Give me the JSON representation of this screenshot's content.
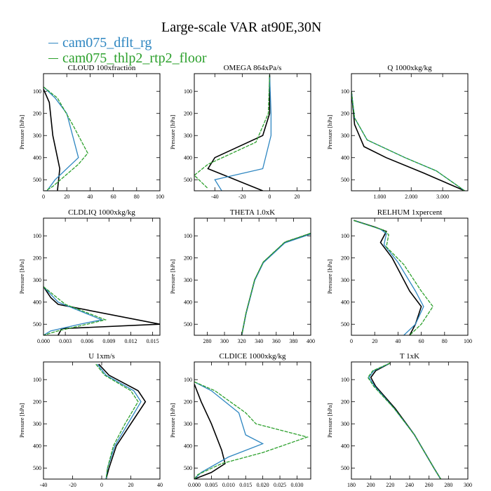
{
  "figure": {
    "title": "Large-scale VAR at90E,30N",
    "legend": [
      {
        "name": "cam075_dflt_rg",
        "color": "#2e86c1"
      },
      {
        "name": "cam075_thlp2_rtp2_floor",
        "color": "#2ca02c"
      }
    ]
  },
  "chart_data": [
    {
      "type": "line",
      "title": "CLOUD  100xfraction",
      "ylabel": "Pressure [hPa]",
      "xlim": [
        0,
        100
      ],
      "ylim": [
        550,
        20
      ],
      "xticks": [
        0,
        20,
        40,
        60,
        80,
        100
      ],
      "xtick_labels": [
        "0",
        "20",
        "40",
        "60",
        "80",
        "100"
      ],
      "yticks": [
        100,
        200,
        300,
        400,
        500
      ],
      "series": [
        {
          "color": "#000000",
          "points": [
            [
              0,
              90
            ],
            [
              5,
              150
            ],
            [
              8,
              300
            ],
            [
              12,
              400
            ],
            [
              14,
              450
            ],
            [
              12,
              550
            ]
          ]
        },
        {
          "color": "#2e86c1",
          "points": [
            [
              0,
              80
            ],
            [
              10,
              130
            ],
            [
              20,
              200
            ],
            [
              25,
              300
            ],
            [
              30,
              400
            ],
            [
              10,
              500
            ],
            [
              3,
              550
            ]
          ]
        },
        {
          "color": "#2ca02c",
          "points": [
            [
              0,
              80
            ],
            [
              12,
              130
            ],
            [
              25,
              250
            ],
            [
              38,
              380
            ],
            [
              30,
              430
            ],
            [
              8,
              530
            ],
            [
              2,
              550
            ]
          ]
        }
      ]
    },
    {
      "type": "line",
      "title": "OMEGA  864xPa/s",
      "ylabel": "Pressure [hPa]",
      "xlim": [
        -55,
        30
      ],
      "ylim": [
        550,
        20
      ],
      "xticks": [
        -40,
        -20,
        0,
        20
      ],
      "xtick_labels": [
        "-40",
        "-20",
        "0",
        "20"
      ],
      "yticks": [
        100,
        200,
        300,
        400,
        500
      ],
      "series": [
        {
          "color": "#000000",
          "points": [
            [
              0,
              25
            ],
            [
              0,
              200
            ],
            [
              -5,
              300
            ],
            [
              -40,
              400
            ],
            [
              -45,
              450
            ],
            [
              -25,
              500
            ],
            [
              -5,
              550
            ]
          ]
        },
        {
          "color": "#2e86c1",
          "points": [
            [
              0,
              25
            ],
            [
              1,
              200
            ],
            [
              1,
              300
            ],
            [
              -5,
              450
            ],
            [
              -40,
              500
            ],
            [
              -35,
              550
            ]
          ]
        },
        {
          "color": "#2ca02c",
          "points": [
            [
              0,
              25
            ],
            [
              -1,
              200
            ],
            [
              -10,
              330
            ],
            [
              -45,
              430
            ],
            [
              -55,
              480
            ],
            [
              -45,
              540
            ]
          ]
        }
      ]
    },
    {
      "type": "line",
      "title": "Q  1000xkg/kg",
      "ylabel": "Pressure [hPa]",
      "xlim": [
        0.1,
        3.8
      ],
      "ylim": [
        550,
        20
      ],
      "xticks": [
        1,
        2,
        3
      ],
      "xtick_labels": [
        "1.000",
        "2.000",
        "3.000"
      ],
      "yticks": [
        100,
        200,
        300,
        400,
        500
      ],
      "series": [
        {
          "color": "#000000",
          "points": [
            [
              0.1,
              100
            ],
            [
              0.2,
              250
            ],
            [
              0.5,
              350
            ],
            [
              1.2,
              400
            ],
            [
              2.4,
              470
            ],
            [
              3.7,
              550
            ]
          ]
        },
        {
          "color": "#2e86c1",
          "points": [
            [
              0.1,
              100
            ],
            [
              0.2,
              220
            ],
            [
              0.6,
              320
            ],
            [
              1.8,
              400
            ],
            [
              2.8,
              460
            ],
            [
              3.7,
              550
            ]
          ]
        },
        {
          "color": "#2ca02c",
          "points": [
            [
              0.1,
              100
            ],
            [
              0.2,
              220
            ],
            [
              0.6,
              320
            ],
            [
              1.8,
              400
            ],
            [
              2.8,
              460
            ],
            [
              3.7,
              550
            ]
          ]
        }
      ]
    },
    {
      "type": "line",
      "title": "CLDLIQ  1000xkg/kg",
      "ylabel": "Pressure [hPa]",
      "xlim": [
        0,
        0.016
      ],
      "ylim": [
        550,
        20
      ],
      "xticks": [
        0,
        0.003,
        0.006,
        0.009,
        0.012,
        0.015
      ],
      "xtick_labels": [
        "0.000",
        "0.003",
        "0.006",
        "0.009",
        "0.012",
        "0.015"
      ],
      "yticks": [
        100,
        200,
        300,
        400,
        500
      ],
      "series": [
        {
          "color": "#000000",
          "points": [
            [
              0,
              330
            ],
            [
              0.001,
              380
            ],
            [
              0.002,
              410
            ],
            [
              0.016,
              500
            ],
            [
              0.0025,
              520
            ],
            [
              0.002,
              550
            ]
          ]
        },
        {
          "color": "#2e86c1",
          "points": [
            [
              0,
              330
            ],
            [
              0.002,
              400
            ],
            [
              0.008,
              480
            ],
            [
              0.005,
              500
            ],
            [
              0.001,
              530
            ],
            [
              0,
              550
            ]
          ]
        },
        {
          "color": "#2ca02c",
          "points": [
            [
              0,
              330
            ],
            [
              0.003,
              410
            ],
            [
              0.0085,
              480
            ],
            [
              0.006,
              500
            ],
            [
              0.002,
              530
            ],
            [
              0,
              550
            ]
          ]
        }
      ]
    },
    {
      "type": "line",
      "title": "THETA  1.0xK",
      "ylabel": "Pressure [hPa]",
      "xlim": [
        265,
        400
      ],
      "ylim": [
        550,
        20
      ],
      "xticks": [
        280,
        300,
        320,
        340,
        360,
        380,
        400
      ],
      "xtick_labels": [
        "280",
        "300",
        "320",
        "340",
        "360",
        "380",
        "400"
      ],
      "yticks": [
        100,
        200,
        300,
        400,
        500
      ],
      "series": [
        {
          "color": "#000000",
          "points": [
            [
              400,
              90
            ],
            [
              370,
              130
            ],
            [
              345,
              220
            ],
            [
              335,
              300
            ],
            [
              325,
              450
            ],
            [
              320,
              550
            ]
          ]
        },
        {
          "color": "#2e86c1",
          "points": [
            [
              400,
              92
            ],
            [
              370,
              132
            ],
            [
              345,
              222
            ],
            [
              335,
              302
            ],
            [
              325,
              452
            ],
            [
              320,
              550
            ]
          ]
        },
        {
          "color": "#2ca02c",
          "points": [
            [
              400,
              88
            ],
            [
              370,
              128
            ],
            [
              345,
              218
            ],
            [
              335,
              298
            ],
            [
              325,
              448
            ],
            [
              320,
              550
            ]
          ]
        }
      ]
    },
    {
      "type": "line",
      "title": "RELHUM  1xpercent",
      "ylabel": "Pressure [hPa]",
      "xlim": [
        0,
        100
      ],
      "ylim": [
        550,
        20
      ],
      "xticks": [
        0,
        20,
        40,
        60,
        80,
        100
      ],
      "xtick_labels": [
        "0",
        "20",
        "40",
        "60",
        "80",
        "100"
      ],
      "yticks": [
        100,
        200,
        300,
        400,
        500
      ],
      "series": [
        {
          "color": "#000000",
          "points": [
            [
              2,
              30
            ],
            [
              20,
              60
            ],
            [
              30,
              80
            ],
            [
              25,
              130
            ],
            [
              35,
              200
            ],
            [
              50,
              350
            ],
            [
              60,
              420
            ],
            [
              55,
              500
            ],
            [
              50,
              550
            ]
          ]
        },
        {
          "color": "#2e86c1",
          "points": [
            [
              2,
              30
            ],
            [
              25,
              70
            ],
            [
              30,
              90
            ],
            [
              28,
              140
            ],
            [
              40,
              220
            ],
            [
              55,
              350
            ],
            [
              62,
              420
            ],
            [
              55,
              500
            ],
            [
              45,
              550
            ]
          ]
        },
        {
          "color": "#2ca02c",
          "points": [
            [
              2,
              30
            ],
            [
              28,
              75
            ],
            [
              32,
              95
            ],
            [
              30,
              150
            ],
            [
              45,
              230
            ],
            [
              60,
              350
            ],
            [
              70,
              420
            ],
            [
              60,
              500
            ],
            [
              50,
              550
            ]
          ]
        }
      ]
    },
    {
      "type": "line",
      "title": "U  1xm/s",
      "ylabel": "Pressure [hPa]",
      "xlim": [
        -40,
        40
      ],
      "ylim": [
        550,
        20
      ],
      "xticks": [
        -40,
        -20,
        0,
        20,
        40
      ],
      "xtick_labels": [
        "-40",
        "-20",
        "0",
        "20",
        "40"
      ],
      "yticks": [
        100,
        200,
        300,
        400,
        500
      ],
      "series": [
        {
          "color": "#000000",
          "points": [
            [
              -2,
              30
            ],
            [
              5,
              80
            ],
            [
              25,
              150
            ],
            [
              30,
              200
            ],
            [
              20,
              300
            ],
            [
              10,
              400
            ],
            [
              5,
              500
            ],
            [
              3,
              550
            ]
          ]
        },
        {
          "color": "#2e86c1",
          "points": [
            [
              -3,
              30
            ],
            [
              3,
              80
            ],
            [
              22,
              150
            ],
            [
              27,
              200
            ],
            [
              18,
              300
            ],
            [
              9,
              400
            ],
            [
              4,
              500
            ],
            [
              3,
              550
            ]
          ]
        },
        {
          "color": "#2ca02c",
          "points": [
            [
              -4,
              30
            ],
            [
              2,
              80
            ],
            [
              20,
              150
            ],
            [
              25,
              200
            ],
            [
              16,
              300
            ],
            [
              8,
              400
            ],
            [
              4,
              500
            ],
            [
              3,
              550
            ]
          ]
        }
      ]
    },
    {
      "type": "line",
      "title": "CLDICE  1000xkg/kg",
      "ylabel": "Pressure [hPa]",
      "xlim": [
        0,
        0.034
      ],
      "ylim": [
        550,
        20
      ],
      "xticks": [
        0,
        0.005,
        0.01,
        0.015,
        0.02,
        0.025,
        0.03
      ],
      "xtick_labels": [
        "0.000",
        "0.005",
        "0.010",
        "0.015",
        "0.020",
        "0.025",
        "0.030"
      ],
      "yticks": [
        100,
        200,
        300,
        400,
        500
      ],
      "series": [
        {
          "color": "#000000",
          "points": [
            [
              0,
              120
            ],
            [
              0.002,
              200
            ],
            [
              0.005,
              300
            ],
            [
              0.008,
              420
            ],
            [
              0.009,
              480
            ],
            [
              0.005,
              520
            ],
            [
              0,
              550
            ]
          ]
        },
        {
          "color": "#2e86c1",
          "points": [
            [
              0,
              110
            ],
            [
              0.005,
              150
            ],
            [
              0.013,
              250
            ],
            [
              0.015,
              350
            ],
            [
              0.02,
              390
            ],
            [
              0.01,
              450
            ],
            [
              0.002,
              520
            ],
            [
              0,
              550
            ]
          ]
        },
        {
          "color": "#2ca02c",
          "points": [
            [
              0,
              110
            ],
            [
              0.006,
              150
            ],
            [
              0.015,
              250
            ],
            [
              0.018,
              300
            ],
            [
              0.033,
              360
            ],
            [
              0.02,
              430
            ],
            [
              0.008,
              480
            ],
            [
              0.001,
              530
            ],
            [
              0,
              550
            ]
          ]
        }
      ]
    },
    {
      "type": "line",
      "title": "T  1xK",
      "ylabel": "Pressure [hPa]",
      "xlim": [
        180,
        300
      ],
      "ylim": [
        550,
        20
      ],
      "xticks": [
        180,
        200,
        220,
        240,
        260,
        280,
        300
      ],
      "xtick_labels": [
        "180",
        "200",
        "220",
        "240",
        "260",
        "280",
        "300"
      ],
      "yticks": [
        100,
        200,
        300,
        400,
        500
      ],
      "series": [
        {
          "color": "#000000",
          "points": [
            [
              220,
              25
            ],
            [
              205,
              60
            ],
            [
              200,
              90
            ],
            [
              205,
              130
            ],
            [
              225,
              230
            ],
            [
              245,
              350
            ],
            [
              265,
              500
            ],
            [
              272,
              550
            ]
          ]
        },
        {
          "color": "#2e86c1",
          "points": [
            [
              220,
              25
            ],
            [
              203,
              60
            ],
            [
              198,
              90
            ],
            [
              204,
              130
            ],
            [
              224,
              230
            ],
            [
              245,
              350
            ],
            [
              265,
              500
            ],
            [
              272,
              550
            ]
          ]
        },
        {
          "color": "#2ca02c",
          "points": [
            [
              220,
              25
            ],
            [
              202,
              60
            ],
            [
              197,
              90
            ],
            [
              203,
              130
            ],
            [
              224,
              230
            ],
            [
              245,
              350
            ],
            [
              265,
              500
            ],
            [
              272,
              550
            ]
          ]
        }
      ]
    }
  ]
}
